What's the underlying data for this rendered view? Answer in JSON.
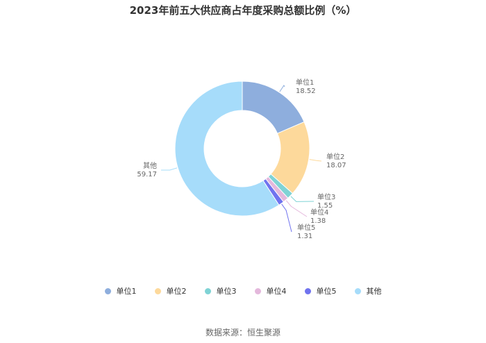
{
  "chart_data": {
    "type": "pie",
    "variant": "donut",
    "title": "2023年前五大供应商占年度采购总额比例（%）",
    "categories": [
      "单位1",
      "单位2",
      "单位3",
      "单位4",
      "单位5",
      "其他"
    ],
    "values": [
      18.52,
      18.07,
      1.55,
      1.38,
      1.31,
      59.17
    ],
    "value_labels": [
      "18.52",
      "18.07",
      "1.55",
      "1.38",
      "1.31",
      "59.17"
    ],
    "colors": [
      "#8eaedd",
      "#fdd99b",
      "#7fd3d5",
      "#e4b8dc",
      "#7073ef",
      "#a6dcfa"
    ],
    "legend_position": "bottom"
  },
  "source": "数据来源：恒生聚源"
}
